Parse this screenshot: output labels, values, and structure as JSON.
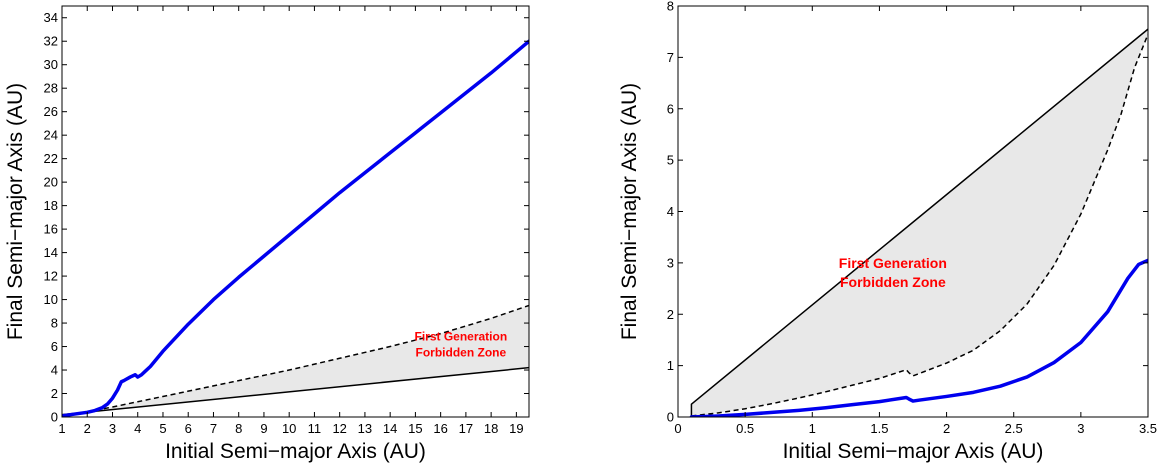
{
  "chart_data": [
    {
      "type": "line",
      "xlabel": "Initial Semi−major Axis (AU)",
      "ylabel": "Final Semi−major Axis (AU)",
      "xlim": [
        1,
        19.5
      ],
      "ylim": [
        0,
        35
      ],
      "xticks": [
        1,
        2,
        3,
        4,
        5,
        6,
        7,
        8,
        9,
        10,
        11,
        12,
        13,
        14,
        15,
        16,
        17,
        18,
        19
      ],
      "xtick_labels": [
        "1",
        "2",
        "3",
        "4",
        "5",
        "6",
        "7",
        "8",
        "9",
        "10",
        "11",
        "12",
        "13",
        "14",
        "15",
        "16",
        "17",
        "18",
        "19"
      ],
      "yticks": [
        0,
        2,
        4,
        6,
        8,
        10,
        12,
        14,
        16,
        18,
        20,
        22,
        24,
        26,
        28,
        30,
        32,
        34
      ],
      "ytick_labels": [
        "0",
        "2",
        "4",
        "6",
        "8",
        "10",
        "12",
        "14",
        "16",
        "18",
        "20",
        "22",
        "24",
        "26",
        "28",
        "30",
        "32",
        "34"
      ],
      "grid": false,
      "annotation": {
        "lines": [
          "First Generation",
          "Forbidden Zone"
        ],
        "color": "#ff0000",
        "x": 16.8,
        "y": 6.5
      },
      "series": [
        {
          "style": "solid-thick",
          "color": "#0000ee",
          "x": [
            1.0,
            1.5,
            2.0,
            2.3,
            2.6,
            2.8,
            3.0,
            3.2,
            3.35,
            3.45,
            3.7,
            3.9,
            4.0,
            4.15,
            4.3,
            4.5,
            5,
            6,
            7,
            8,
            9,
            10,
            11,
            12,
            13,
            14,
            15,
            16,
            17,
            18,
            19,
            19.5
          ],
          "y": [
            0.1,
            0.25,
            0.4,
            0.55,
            0.8,
            1.1,
            1.6,
            2.3,
            3.0,
            3.1,
            3.4,
            3.6,
            3.4,
            3.6,
            3.9,
            4.3,
            5.6,
            7.9,
            10.0,
            11.9,
            13.7,
            15.5,
            17.3,
            19.1,
            20.8,
            22.5,
            24.2,
            25.9,
            27.6,
            29.3,
            31.1,
            32.0
          ]
        },
        {
          "style": "dashed",
          "color": "#000000",
          "x": [
            1,
            2,
            3,
            4,
            6,
            8,
            10,
            12,
            14,
            16,
            18,
            19.5
          ],
          "y": [
            0.15,
            0.45,
            0.85,
            1.3,
            2.2,
            3.1,
            4.0,
            5.0,
            6.0,
            7.1,
            8.4,
            9.5
          ]
        },
        {
          "style": "solid-thin",
          "color": "#000000",
          "x": [
            1,
            19.5
          ],
          "y": [
            0.2,
            4.2
          ]
        }
      ],
      "shaded_region": {
        "color": "#e8e8e8",
        "between": [
          "dashed",
          "solid-thin"
        ]
      }
    },
    {
      "type": "line",
      "xlabel": "Initial Semi−major Axis (AU)",
      "ylabel": "Final Semi−major Axis (AU)",
      "xlim": [
        0,
        3.5
      ],
      "ylim": [
        0,
        8
      ],
      "xticks": [
        0,
        0.5,
        1,
        1.5,
        2,
        2.5,
        3,
        3.5
      ],
      "xtick_labels": [
        "0",
        "0.5",
        "1",
        "1.5",
        "2",
        "2.5",
        "3",
        "3.5"
      ],
      "yticks": [
        0,
        1,
        2,
        3,
        4,
        5,
        6,
        7,
        8
      ],
      "ytick_labels": [
        "0",
        "1",
        "2",
        "3",
        "4",
        "5",
        "6",
        "7",
        "8"
      ],
      "grid": false,
      "annotation": {
        "lines": [
          "First Generation",
          "Forbidden Zone"
        ],
        "color": "#ff0000",
        "x": 1.6,
        "y": 2.9
      },
      "series": [
        {
          "style": "solid-thick",
          "color": "#0000ee",
          "x": [
            0.1,
            0.3,
            0.5,
            0.7,
            0.9,
            1.1,
            1.3,
            1.5,
            1.7,
            1.72,
            1.75,
            1.8,
            2.0,
            2.2,
            2.4,
            2.6,
            2.8,
            3.0,
            3.2,
            3.35,
            3.43,
            3.5
          ],
          "y": [
            0.0,
            0.02,
            0.05,
            0.09,
            0.13,
            0.18,
            0.24,
            0.3,
            0.38,
            0.35,
            0.31,
            0.33,
            0.4,
            0.48,
            0.6,
            0.78,
            1.06,
            1.45,
            2.05,
            2.7,
            2.97,
            3.05
          ]
        },
        {
          "style": "dashed",
          "color": "#000000",
          "x": [
            0.1,
            0.3,
            0.5,
            0.7,
            0.9,
            1.1,
            1.3,
            1.5,
            1.7,
            1.72,
            1.75,
            1.8,
            2.0,
            2.2,
            2.4,
            2.6,
            2.8,
            3.0,
            3.2,
            3.3,
            3.4,
            3.5
          ],
          "y": [
            0.02,
            0.08,
            0.16,
            0.26,
            0.37,
            0.49,
            0.62,
            0.75,
            0.92,
            0.86,
            0.8,
            0.85,
            1.05,
            1.3,
            1.68,
            2.2,
            2.95,
            3.95,
            5.2,
            5.9,
            6.8,
            7.45
          ]
        },
        {
          "style": "solid-thin",
          "color": "#000000",
          "x": [
            0.1,
            0.1,
            3.5
          ],
          "y": [
            0.0,
            0.25,
            7.55
          ]
        }
      ],
      "shaded_region": {
        "color": "#e8e8e8",
        "between": [
          "solid-thin",
          "dashed"
        ]
      }
    }
  ]
}
